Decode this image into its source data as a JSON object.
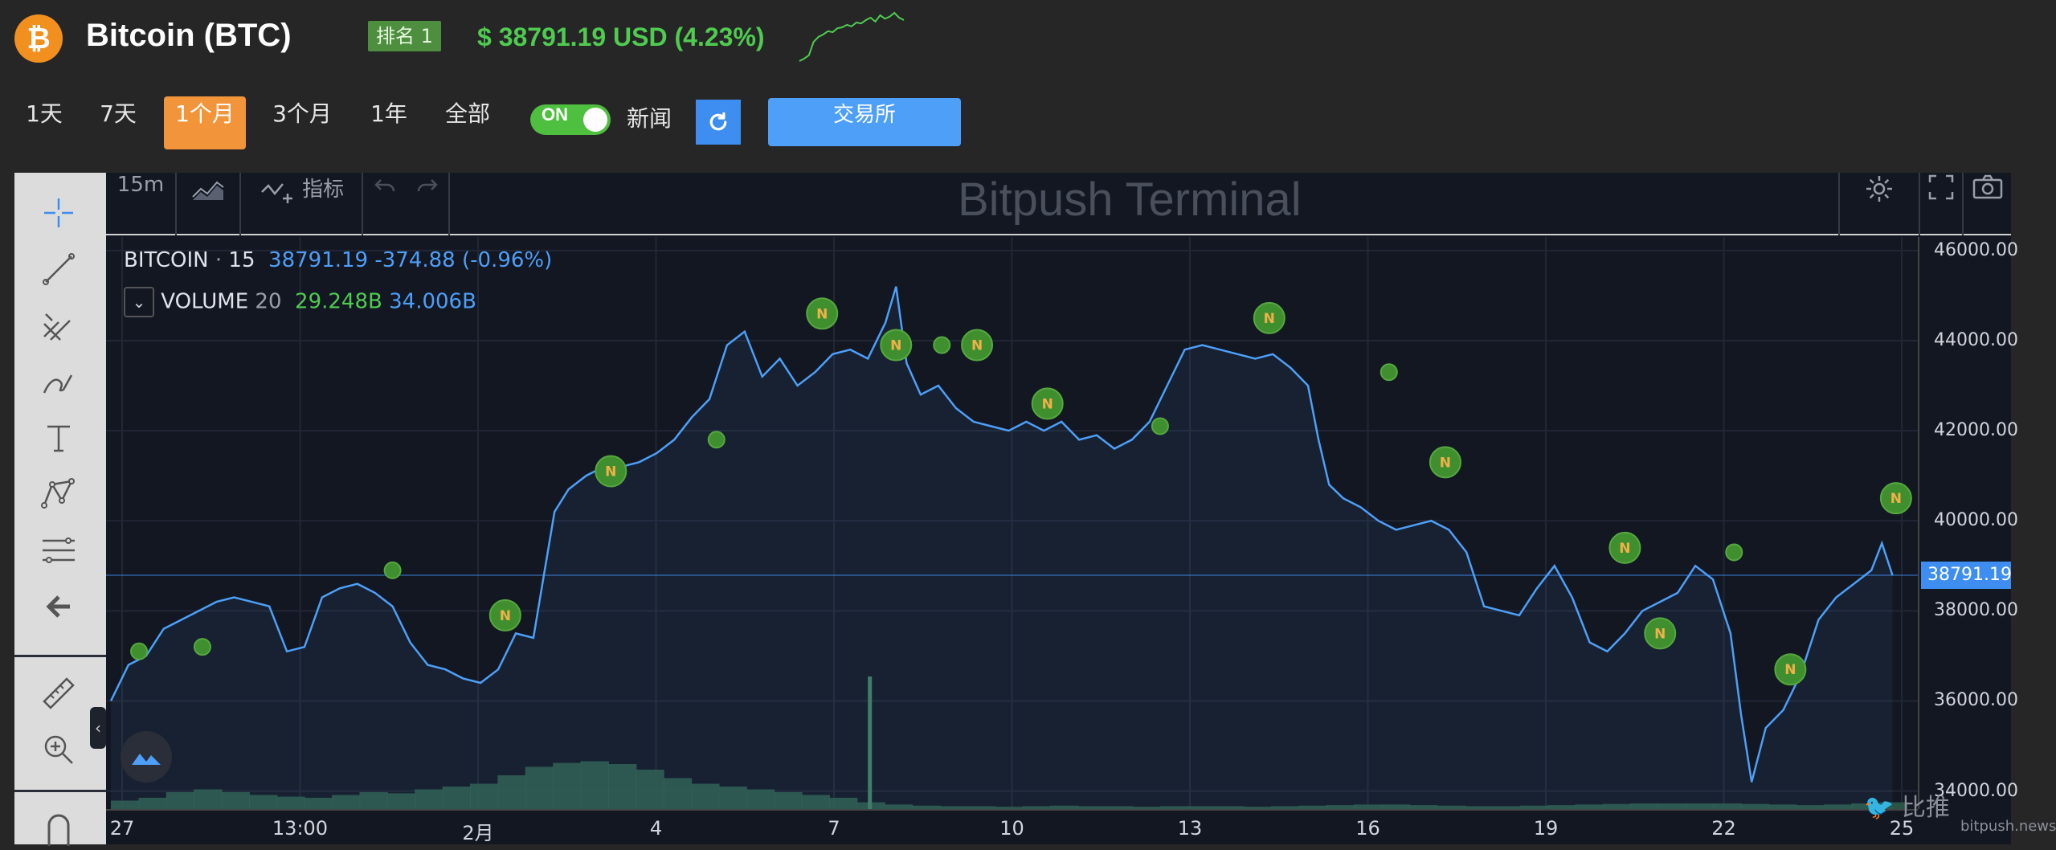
{
  "header": {
    "coin_title": "Bitcoin (BTC)",
    "rank": "排名 1",
    "price": "$ 38791.19 USD (4.23%)",
    "logo_glyph": "₿",
    "sparkline": [
      0,
      0.05,
      0.12,
      0.4,
      0.5,
      0.55,
      0.62,
      0.6,
      0.68,
      0.7,
      0.75,
      0.72,
      0.8,
      0.78,
      0.85,
      0.9,
      0.82,
      0.95,
      0.88,
      0.92,
      1.0,
      0.9,
      0.85
    ]
  },
  "periods": [
    "1天",
    "7天",
    "1个月",
    "3个月",
    "1年",
    "全部"
  ],
  "active_period": "1个月",
  "toggle": {
    "label": "ON",
    "state": "on"
  },
  "news_label": "新闻",
  "exchange_label": "交易所",
  "chart_toolbar": {
    "interval": "15m",
    "indicators_label": "指标",
    "watermark": "Bitpush Terminal"
  },
  "legend": {
    "symbol": "BITCOIN",
    "interval": "15",
    "last": "38791.19",
    "change": "-374.88 (-0.96%)",
    "volume_label": "VOLUME",
    "volume_len": "20",
    "volume_val1": "29.248B",
    "volume_val2": "34.006B"
  },
  "footer": {
    "brand": "比推",
    "domain": "bitpush.news"
  },
  "colors": {
    "accent": "#f2943a",
    "line": "#4d9ff8",
    "up": "#4fcb50",
    "news_marker": "#3f8f2e"
  },
  "chart_data": {
    "type": "line",
    "symbol": "BITCOIN",
    "x_ticks": [
      "27",
      "13:00",
      "2月",
      "4",
      "7",
      "10",
      "13",
      "16",
      "19",
      "22",
      "25"
    ],
    "y_ticks": [
      "46000.00",
      "44000.00",
      "42000.00",
      "40000.00",
      "38000.00",
      "36000.00",
      "34000.00"
    ],
    "ylim": [
      33600,
      46300
    ],
    "current_price": "38791.19",
    "price_points": [
      [
        0,
        36000
      ],
      [
        0.5,
        36800
      ],
      [
        1,
        37000
      ],
      [
        1.5,
        37600
      ],
      [
        2,
        37800
      ],
      [
        2.5,
        38000
      ],
      [
        3,
        38200
      ],
      [
        3.5,
        38300
      ],
      [
        4,
        38200
      ],
      [
        4.5,
        38100
      ],
      [
        5,
        37100
      ],
      [
        5.5,
        37200
      ],
      [
        6,
        38300
      ],
      [
        6.5,
        38500
      ],
      [
        7,
        38600
      ],
      [
        7.5,
        38400
      ],
      [
        8,
        38100
      ],
      [
        8.5,
        37300
      ],
      [
        9,
        36800
      ],
      [
        9.5,
        36700
      ],
      [
        10,
        36500
      ],
      [
        10.5,
        36400
      ],
      [
        11,
        36700
      ],
      [
        11.5,
        37500
      ],
      [
        12,
        37400
      ],
      [
        12.3,
        38800
      ],
      [
        12.6,
        40200
      ],
      [
        13,
        40700
      ],
      [
        13.5,
        41000
      ],
      [
        14,
        41200
      ],
      [
        14.5,
        41200
      ],
      [
        15,
        41300
      ],
      [
        15.5,
        41500
      ],
      [
        16,
        41800
      ],
      [
        16.5,
        42300
      ],
      [
        17,
        42700
      ],
      [
        17.5,
        43900
      ],
      [
        18,
        44200
      ],
      [
        18.5,
        43200
      ],
      [
        19,
        43600
      ],
      [
        19.5,
        43000
      ],
      [
        20,
        43300
      ],
      [
        20.5,
        43700
      ],
      [
        21,
        43800
      ],
      [
        21.5,
        43600
      ],
      [
        22,
        44400
      ],
      [
        22.3,
        45200
      ],
      [
        22.6,
        43500
      ],
      [
        23,
        42800
      ],
      [
        23.5,
        43000
      ],
      [
        24,
        42500
      ],
      [
        24.5,
        42200
      ],
      [
        25,
        42100
      ],
      [
        25.5,
        42000
      ],
      [
        26,
        42200
      ],
      [
        26.5,
        42000
      ],
      [
        27,
        42200
      ],
      [
        27.5,
        41800
      ],
      [
        28,
        41900
      ],
      [
        28.5,
        41600
      ],
      [
        29,
        41800
      ],
      [
        29.5,
        42200
      ],
      [
        30,
        43000
      ],
      [
        30.5,
        43800
      ],
      [
        31,
        43900
      ],
      [
        31.5,
        43800
      ],
      [
        32,
        43700
      ],
      [
        32.5,
        43600
      ],
      [
        33,
        43700
      ],
      [
        33.5,
        43400
      ],
      [
        34,
        43000
      ],
      [
        34.3,
        41800
      ],
      [
        34.6,
        40800
      ],
      [
        35,
        40500
      ],
      [
        35.5,
        40300
      ],
      [
        36,
        40000
      ],
      [
        36.5,
        39800
      ],
      [
        37,
        39900
      ],
      [
        37.5,
        40000
      ],
      [
        38,
        39800
      ],
      [
        38.5,
        39300
      ],
      [
        39,
        38100
      ],
      [
        39.5,
        38000
      ],
      [
        40,
        37900
      ],
      [
        40.5,
        38500
      ],
      [
        41,
        39000
      ],
      [
        41.5,
        38300
      ],
      [
        42,
        37300
      ],
      [
        42.5,
        37100
      ],
      [
        43,
        37500
      ],
      [
        43.5,
        38000
      ],
      [
        44,
        38200
      ],
      [
        44.5,
        38400
      ],
      [
        45,
        39000
      ],
      [
        45.5,
        38700
      ],
      [
        46,
        37500
      ],
      [
        46.3,
        35700
      ],
      [
        46.6,
        34200
      ],
      [
        47,
        35400
      ],
      [
        47.5,
        35800
      ],
      [
        48,
        36600
      ],
      [
        48.5,
        37800
      ],
      [
        49,
        38300
      ],
      [
        49.5,
        38600
      ],
      [
        50,
        38900
      ],
      [
        50.3,
        39500
      ],
      [
        50.6,
        38791
      ]
    ],
    "news_markers": [
      {
        "x": 0.8,
        "y": 37100,
        "large": false
      },
      {
        "x": 2.6,
        "y": 37200,
        "large": false
      },
      {
        "x": 8.0,
        "y": 38900,
        "large": false
      },
      {
        "x": 11.2,
        "y": 37900,
        "large": true
      },
      {
        "x": 14.2,
        "y": 41100,
        "large": true
      },
      {
        "x": 17.2,
        "y": 41800,
        "large": false
      },
      {
        "x": 20.2,
        "y": 44600,
        "large": true
      },
      {
        "x": 22.3,
        "y": 43900,
        "large": true
      },
      {
        "x": 23.6,
        "y": 43900,
        "large": false
      },
      {
        "x": 24.6,
        "y": 43900,
        "large": true
      },
      {
        "x": 26.6,
        "y": 42600,
        "large": true
      },
      {
        "x": 29.8,
        "y": 42100,
        "large": false
      },
      {
        "x": 32.9,
        "y": 44500,
        "large": true
      },
      {
        "x": 36.3,
        "y": 43300,
        "large": false
      },
      {
        "x": 37.9,
        "y": 41300,
        "large": true
      },
      {
        "x": 43.0,
        "y": 39400,
        "large": true
      },
      {
        "x": 44.0,
        "y": 37500,
        "large": true
      },
      {
        "x": 46.1,
        "y": 39300,
        "large": false
      },
      {
        "x": 47.7,
        "y": 36700,
        "large": true
      },
      {
        "x": 50.7,
        "y": 40500,
        "large": true
      }
    ],
    "volume_profile": [
      0.15,
      0.2,
      0.3,
      0.35,
      0.3,
      0.25,
      0.22,
      0.2,
      0.25,
      0.3,
      0.28,
      0.35,
      0.4,
      0.45,
      0.6,
      0.75,
      0.82,
      0.85,
      0.8,
      0.7,
      0.55,
      0.45,
      0.4,
      0.35,
      0.3,
      0.25,
      0.2,
      0.12,
      0.08,
      0.06,
      0.05,
      0.05,
      0.04,
      0.05,
      0.06,
      0.05,
      0.05,
      0.04,
      0.05,
      0.05,
      0.05,
      0.04,
      0.05,
      0.06,
      0.07,
      0.08,
      0.08,
      0.07,
      0.06,
      0.05,
      0.05,
      0.06,
      0.07,
      0.08,
      0.09,
      0.1,
      0.1,
      0.1,
      0.1,
      0.09,
      0.08,
      0.07,
      0.08,
      0.1,
      0.12
    ],
    "volume_spike_x": 21.5,
    "x_max": 51,
    "grid": true
  }
}
